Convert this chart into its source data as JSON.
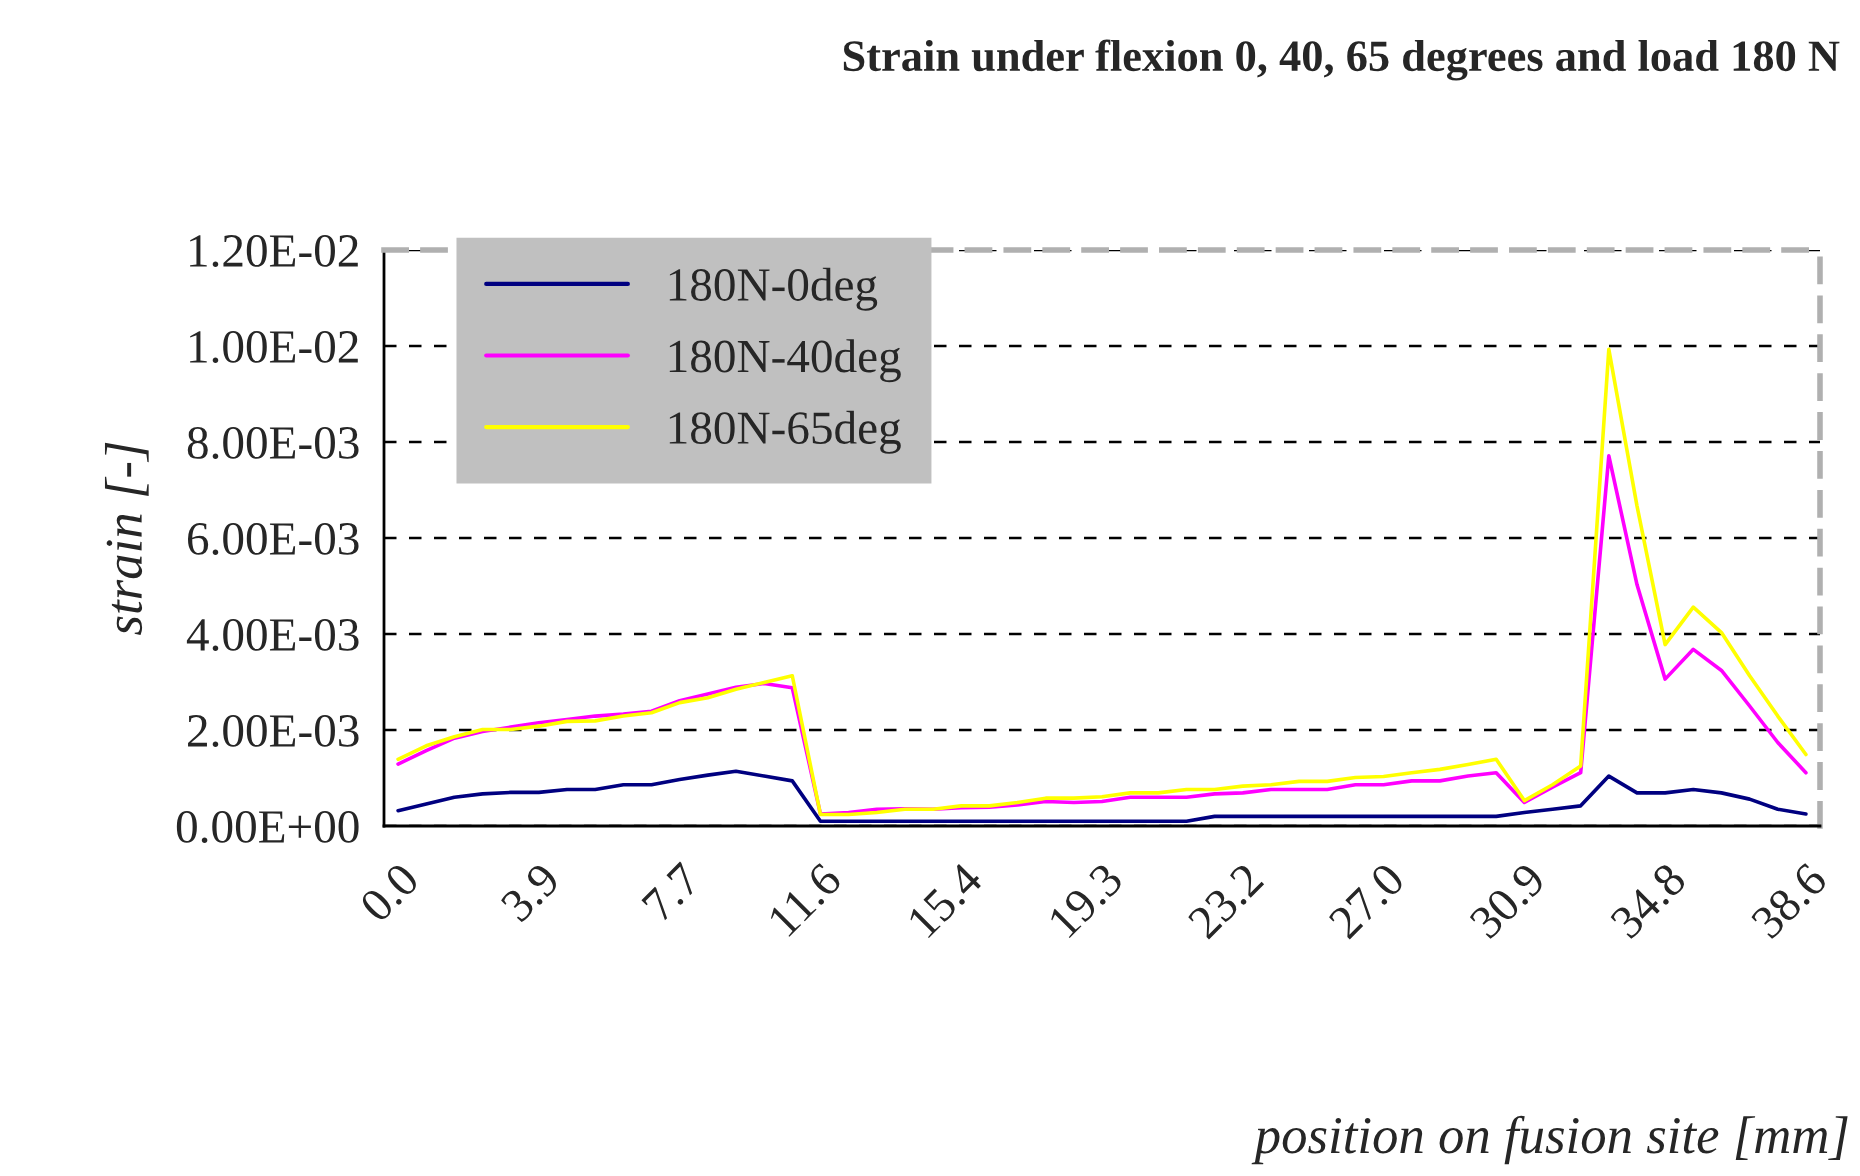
{
  "chart_data": {
    "type": "line",
    "title": "Strain under flexion 0, 40, 65 degrees and load 180 N",
    "xlabel": "position on fusion site [mm]",
    "ylabel": "strain [-]",
    "categories": [
      "0.0",
      null,
      null,
      null,
      null,
      "3.9",
      null,
      null,
      null,
      null,
      "7.7",
      null,
      null,
      null,
      null,
      "11.6",
      null,
      null,
      null,
      null,
      "15.4",
      null,
      null,
      null,
      null,
      "19.3",
      null,
      null,
      null,
      null,
      "23.2",
      null,
      null,
      null,
      null,
      "27.0",
      null,
      null,
      null,
      null,
      "30.9",
      null,
      null,
      null,
      null,
      "34.8",
      null,
      null,
      null,
      null,
      "38.6"
    ],
    "series": [
      {
        "name": "180N-0deg",
        "color": "#000080",
        "values": [
          0.00032,
          0.00046,
          0.0006,
          0.00067,
          0.0007,
          0.0007,
          0.00076,
          0.00076,
          0.00086,
          0.00086,
          0.00097,
          0.00106,
          0.00114,
          0.00104,
          0.00094,
          0.0001,
          0.0001,
          0.0001,
          0.0001,
          0.0001,
          0.0001,
          0.0001,
          0.0001,
          0.0001,
          0.0001,
          0.0001,
          0.0001,
          0.0001,
          0.0001,
          0.0002,
          0.0002,
          0.0002,
          0.0002,
          0.0002,
          0.0002,
          0.0002,
          0.0002,
          0.0002,
          0.0002,
          0.0002,
          0.00028,
          0.00035,
          0.00042,
          0.00104,
          0.00069,
          0.00069,
          0.00076,
          0.00069,
          0.00056,
          0.00035,
          0.00025
        ]
      },
      {
        "name": "180N-40deg",
        "color": "#ff00ff",
        "values": [
          0.00129,
          0.00157,
          0.00183,
          0.00197,
          0.00206,
          0.00215,
          0.00222,
          0.00229,
          0.00233,
          0.00239,
          0.00261,
          0.00275,
          0.00289,
          0.00297,
          0.00288,
          0.00025,
          0.00028,
          0.00035,
          0.00036,
          0.00035,
          0.00038,
          0.00039,
          0.00044,
          0.00051,
          0.00049,
          0.00051,
          0.0006,
          0.0006,
          0.0006,
          0.00067,
          0.00069,
          0.00076,
          0.00076,
          0.00076,
          0.00086,
          0.00086,
          0.00094,
          0.00094,
          0.00104,
          0.00111,
          0.00049,
          0.00081,
          0.00111,
          0.00771,
          0.00503,
          0.00306,
          0.00368,
          0.00324,
          0.0025,
          0.00174,
          0.00111
        ]
      },
      {
        "name": "180N-65deg",
        "color": "#ffff00",
        "values": [
          0.00139,
          0.00167,
          0.00186,
          0.00201,
          0.00201,
          0.00208,
          0.00218,
          0.00219,
          0.00229,
          0.00236,
          0.00257,
          0.00267,
          0.00285,
          0.00299,
          0.00313,
          0.00024,
          0.00024,
          0.00028,
          0.00035,
          0.00035,
          0.00042,
          0.00042,
          0.00049,
          0.00058,
          0.00058,
          0.00061,
          0.00069,
          0.00069,
          0.00076,
          0.00076,
          0.00083,
          0.00086,
          0.00093,
          0.00093,
          0.00101,
          0.00103,
          0.00111,
          0.00118,
          0.00128,
          0.00139,
          0.00053,
          0.00086,
          0.00125,
          0.00993,
          0.00667,
          0.00378,
          0.00456,
          0.00403,
          0.00313,
          0.00229,
          0.00149
        ]
      }
    ],
    "ylim": [
      0,
      0.012
    ],
    "yticks": [
      {
        "value": 0,
        "label": "0.00E+00"
      },
      {
        "value": 0.002,
        "label": "2.00E-03"
      },
      {
        "value": 0.004,
        "label": "4.00E-03"
      },
      {
        "value": 0.006,
        "label": "6.00E-03"
      },
      {
        "value": 0.008,
        "label": "8.00E-03"
      },
      {
        "value": 0.01,
        "label": "1.00E-02"
      },
      {
        "value": 0.012,
        "label": "1.20E-02"
      }
    ],
    "grid": "y",
    "legend": "top left",
    "marker": "none",
    "line_style": "solid"
  }
}
